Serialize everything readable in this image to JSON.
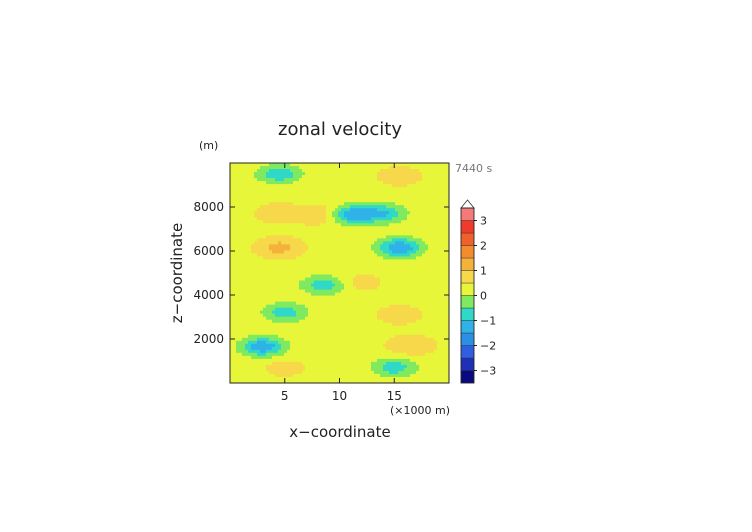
{
  "chart_data": {
    "type": "heatmap",
    "title": "zonal velocity",
    "xlabel": "x−coordinate",
    "ylabel": "z−coordinate",
    "x_unit": "(×1000 m)",
    "y_unit": "(m)",
    "time_label": "7440 s",
    "xlim": [
      0,
      20
    ],
    "ylim": [
      0,
      10000
    ],
    "x_ticks": [
      "5",
      "10",
      "15"
    ],
    "x_tick_values": [
      5,
      10,
      15
    ],
    "y_ticks": [
      "2000",
      "4000",
      "6000",
      "8000"
    ],
    "y_tick_values": [
      2000,
      4000,
      6000,
      8000
    ],
    "grid": false,
    "colorbar": {
      "position": "right",
      "range": [
        -3.5,
        3.5
      ],
      "levels": [
        -3.5,
        -3.0,
        -2.5,
        -2.0,
        -1.5,
        -1.0,
        -0.5,
        0,
        0.5,
        1.0,
        1.5,
        2.0,
        2.5,
        3.0,
        3.5
      ],
      "tick_labels": [
        "3",
        "2",
        "1",
        "0",
        "−1",
        "−2",
        "−3"
      ],
      "tick_values": [
        3,
        2,
        1,
        0,
        -1,
        -2,
        -3
      ],
      "colors": [
        "#0a0a80",
        "#1e2fb8",
        "#2f5fe0",
        "#2b8fe6",
        "#2fb2e8",
        "#30d8c8",
        "#7fea60",
        "#e8f63a",
        "#f7d84a",
        "#f4b23a",
        "#f28c2e",
        "#f0602a",
        "#f23a2a",
        "#f47a7a",
        "#f8b4b4"
      ],
      "overflow": "triangle-top"
    },
    "field_centers": [
      {
        "x": 5.0,
        "z": 700,
        "value": 0.7
      },
      {
        "x": 15.0,
        "z": 700,
        "value": -0.8
      },
      {
        "x": 3.0,
        "z": 1650,
        "value": -1.4
      },
      {
        "x": 16.5,
        "z": 1700,
        "value": 1.0
      },
      {
        "x": 5.0,
        "z": 3200,
        "value": -0.8
      },
      {
        "x": 15.5,
        "z": 3100,
        "value": 0.8
      },
      {
        "x": 8.5,
        "z": 4450,
        "value": -0.8
      },
      {
        "x": 12.0,
        "z": 4550,
        "value": 0.7
      },
      {
        "x": 4.5,
        "z": 6150,
        "value": 1.2
      },
      {
        "x": 15.5,
        "z": 6150,
        "value": -1.5
      },
      {
        "x": 4.5,
        "z": 7700,
        "value": 0.9
      },
      {
        "x": 8.5,
        "z": 7650,
        "value": 1.1
      },
      {
        "x": 14.0,
        "z": 7700,
        "value": -1.0
      },
      {
        "x": 11.0,
        "z": 7650,
        "value": -1.4
      },
      {
        "x": 4.5,
        "z": 9500,
        "value": -0.9
      },
      {
        "x": 15.5,
        "z": 9400,
        "value": 0.8
      }
    ]
  }
}
